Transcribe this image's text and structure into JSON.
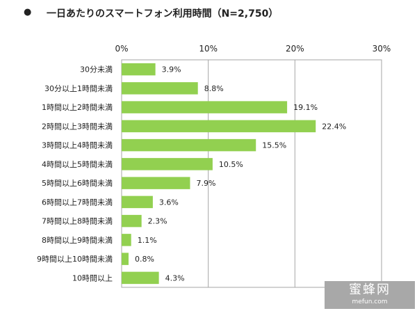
{
  "title_row": {
    "bullet": "●",
    "text": "一日あたりのスマートフォン利用時間（N=2,750）"
  },
  "watermark": {
    "main": "蜜蜂网",
    "sub": "mefun.com"
  },
  "colors": {
    "bar": "#92d050",
    "gridline": "#a6a6a6",
    "text": "#222222"
  },
  "chart_data": {
    "type": "bar",
    "orientation": "horizontal",
    "title": "一日あたりのスマートフォン利用時間（N=2,750）",
    "xlim": [
      0,
      30
    ],
    "x_ticks": [
      0,
      10,
      20,
      30
    ],
    "x_tick_labels": [
      "0%",
      "10%",
      "20%",
      "30%"
    ],
    "grid": true,
    "categories": [
      "30分未満",
      "30分以上1時間未満",
      "1時間以上2時間未満",
      "2時間以上3時間未満",
      "3時間以上4時間未満",
      "4時間以上5時間未満",
      "5時間以上6時間未満",
      "6時間以上7時間未満",
      "7時間以上8時間未満",
      "8時間以上9時間未満",
      "9時間以上10時間未満",
      "10時間以上"
    ],
    "values": [
      3.9,
      8.8,
      19.1,
      22.4,
      15.5,
      10.5,
      7.9,
      3.6,
      2.3,
      1.1,
      0.8,
      4.3
    ],
    "data_labels": [
      "3.9%",
      "8.8%",
      "19.1%",
      "22.4%",
      "15.5%",
      "10.5%",
      "7.9%",
      "3.6%",
      "2.3%",
      "1.1%",
      "0.8%",
      "4.3%"
    ]
  }
}
